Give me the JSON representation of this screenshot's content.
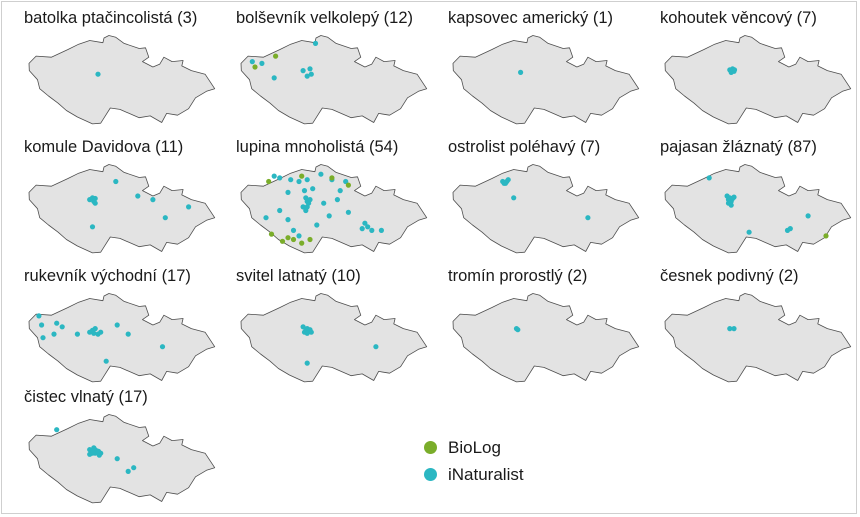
{
  "colors": {
    "map_fill": "#e3e3e3",
    "map_stroke": "#4d4d4d",
    "biolog": "#7aad2a",
    "inaturalist": "#2bb7c2"
  },
  "legend": {
    "items": [
      {
        "key": "biolog",
        "label": "BioLog",
        "color": "#7aad2a"
      },
      {
        "key": "inaturalist",
        "label": "iNaturalist",
        "color": "#2bb7c2"
      }
    ]
  },
  "panels": [
    {
      "title": "batolka ptačincolistá (3)",
      "points": {
        "inaturalist": [
          [
            14.6,
            49.95
          ]
        ],
        "biolog": []
      }
    },
    {
      "title": "bolševník velkolepý (12)",
      "points": {
        "inaturalist": [
          [
            12.5,
            50.3
          ],
          [
            12.85,
            50.25
          ],
          [
            14.8,
            50.8
          ],
          [
            14.35,
            50.05
          ],
          [
            14.6,
            50.1
          ],
          [
            14.65,
            49.95
          ],
          [
            13.3,
            49.85
          ],
          [
            14.5,
            49.9
          ]
        ],
        "biolog": [
          [
            13.35,
            50.45
          ],
          [
            12.6,
            50.15
          ]
        ]
      }
    },
    {
      "title": "kapsovec americký (1)",
      "points": {
        "inaturalist": [
          [
            14.55,
            50.0
          ]
        ],
        "biolog": []
      }
    },
    {
      "title": "kohoutek věncový (7)",
      "points": {
        "inaturalist": [
          [
            14.45,
            50.07
          ],
          [
            14.5,
            50.05
          ],
          [
            14.55,
            50.1
          ],
          [
            14.6,
            50.03
          ],
          [
            14.5,
            50.0
          ],
          [
            14.55,
            50.04
          ],
          [
            14.62,
            50.07
          ]
        ],
        "biolog": []
      }
    },
    {
      "title": "komule Davidova (11)",
      "points": {
        "inaturalist": [
          [
            14.3,
            50.05
          ],
          [
            14.4,
            50.1
          ],
          [
            14.45,
            50.0
          ],
          [
            14.5,
            50.08
          ],
          [
            15.25,
            50.55
          ],
          [
            16.05,
            50.15
          ],
          [
            16.6,
            50.05
          ],
          [
            17.9,
            49.85
          ],
          [
            17.05,
            49.55
          ],
          [
            14.4,
            49.3
          ],
          [
            14.5,
            49.95
          ]
        ],
        "biolog": []
      }
    },
    {
      "title": "lupina mnoholistá (54)",
      "points": {
        "inaturalist": [
          [
            13.3,
            50.7
          ],
          [
            13.5,
            50.65
          ],
          [
            13.9,
            50.6
          ],
          [
            14.2,
            50.55
          ],
          [
            14.5,
            50.6
          ],
          [
            15.0,
            50.75
          ],
          [
            15.4,
            50.6
          ],
          [
            15.7,
            50.3
          ],
          [
            14.4,
            50.3
          ],
          [
            14.45,
            50.1
          ],
          [
            14.5,
            50.0
          ],
          [
            14.55,
            49.95
          ],
          [
            14.6,
            50.05
          ],
          [
            14.35,
            49.85
          ],
          [
            14.45,
            49.75
          ],
          [
            15.1,
            49.95
          ],
          [
            15.6,
            50.05
          ],
          [
            16.0,
            49.7
          ],
          [
            16.6,
            49.4
          ],
          [
            16.7,
            49.3
          ],
          [
            16.5,
            49.25
          ],
          [
            16.85,
            49.2
          ],
          [
            17.2,
            49.2
          ],
          [
            14.2,
            49.05
          ],
          [
            14.0,
            49.2
          ],
          [
            13.8,
            49.5
          ],
          [
            13.5,
            49.75
          ],
          [
            13.0,
            49.55
          ],
          [
            14.85,
            49.35
          ],
          [
            15.3,
            49.6
          ],
          [
            14.7,
            50.35
          ],
          [
            15.9,
            50.55
          ],
          [
            13.8,
            50.25
          ],
          [
            14.5,
            49.85
          ]
        ],
        "biolog": [
          [
            13.1,
            50.55
          ],
          [
            14.3,
            50.7
          ],
          [
            15.4,
            50.65
          ],
          [
            16.0,
            50.45
          ],
          [
            13.8,
            49.0
          ],
          [
            14.0,
            48.95
          ],
          [
            14.3,
            48.85
          ],
          [
            14.6,
            48.95
          ],
          [
            13.6,
            48.9
          ],
          [
            13.2,
            49.1
          ]
        ]
      }
    },
    {
      "title": "ostrolist poléhavý (7)",
      "points": {
        "inaturalist": [
          [
            13.9,
            50.55
          ],
          [
            14.0,
            50.5
          ],
          [
            14.05,
            50.55
          ],
          [
            13.95,
            50.5
          ],
          [
            14.1,
            50.6
          ],
          [
            14.3,
            50.1
          ],
          [
            17.0,
            49.55
          ]
        ],
        "biolog": []
      }
    },
    {
      "title": "pajasan žláznatý (87)",
      "points": {
        "inaturalist": [
          [
            13.7,
            50.65
          ],
          [
            14.35,
            50.15
          ],
          [
            14.4,
            50.05
          ],
          [
            14.45,
            50.1
          ],
          [
            14.5,
            50.0
          ],
          [
            14.55,
            50.08
          ],
          [
            14.4,
            49.95
          ],
          [
            14.5,
            49.9
          ],
          [
            14.6,
            50.12
          ],
          [
            16.55,
            49.2
          ],
          [
            16.65,
            49.25
          ],
          [
            17.3,
            49.6
          ],
          [
            15.15,
            49.15
          ]
        ],
        "biolog": [
          [
            17.95,
            49.05
          ]
        ]
      }
    },
    {
      "title": "rukevník východní (17)",
      "points": {
        "inaturalist": [
          [
            12.45,
            50.4
          ],
          [
            12.55,
            50.15
          ],
          [
            13.1,
            50.2
          ],
          [
            13.3,
            50.1
          ],
          [
            12.6,
            49.8
          ],
          [
            13.0,
            49.9
          ],
          [
            13.85,
            49.9
          ],
          [
            14.3,
            49.95
          ],
          [
            14.4,
            50.0
          ],
          [
            14.45,
            49.92
          ],
          [
            14.5,
            50.05
          ],
          [
            14.7,
            49.95
          ],
          [
            14.6,
            49.9
          ],
          [
            15.7,
            49.9
          ],
          [
            15.3,
            50.15
          ],
          [
            16.95,
            49.55
          ],
          [
            14.9,
            49.15
          ]
        ],
        "biolog": []
      }
    },
    {
      "title": "svitel latnatý (10)",
      "points": {
        "inaturalist": [
          [
            14.45,
            50.0
          ],
          [
            14.5,
            50.05
          ],
          [
            14.55,
            49.98
          ],
          [
            14.4,
            49.95
          ],
          [
            14.6,
            50.02
          ],
          [
            14.5,
            49.92
          ],
          [
            14.35,
            50.1
          ],
          [
            14.65,
            49.95
          ],
          [
            17.0,
            49.55
          ],
          [
            14.5,
            49.1
          ]
        ],
        "biolog": []
      }
    },
    {
      "title": "tromín prorostlý (2)",
      "points": {
        "inaturalist": [
          [
            14.4,
            50.05
          ],
          [
            14.45,
            50.02
          ]
        ],
        "biolog": []
      }
    },
    {
      "title": "česnek podivný (2)",
      "points": {
        "inaturalist": [
          [
            14.45,
            50.05
          ],
          [
            14.6,
            50.05
          ]
        ],
        "biolog": []
      }
    },
    {
      "title": "čistec vlnatý (17)",
      "points": {
        "inaturalist": [
          [
            13.1,
            50.6
          ],
          [
            14.3,
            50.05
          ],
          [
            14.4,
            50.0
          ],
          [
            14.35,
            49.95
          ],
          [
            14.45,
            50.1
          ],
          [
            14.7,
            49.95
          ],
          [
            14.5,
            49.95
          ],
          [
            15.3,
            49.8
          ],
          [
            15.9,
            49.55
          ],
          [
            15.7,
            49.45
          ],
          [
            14.4,
            49.95
          ],
          [
            14.55,
            50.02
          ],
          [
            14.65,
            49.9
          ],
          [
            14.3,
            49.92
          ],
          [
            14.48,
            50.06
          ],
          [
            14.62,
            50.0
          ],
          [
            14.42,
            49.98
          ]
        ],
        "biolog": []
      }
    }
  ]
}
